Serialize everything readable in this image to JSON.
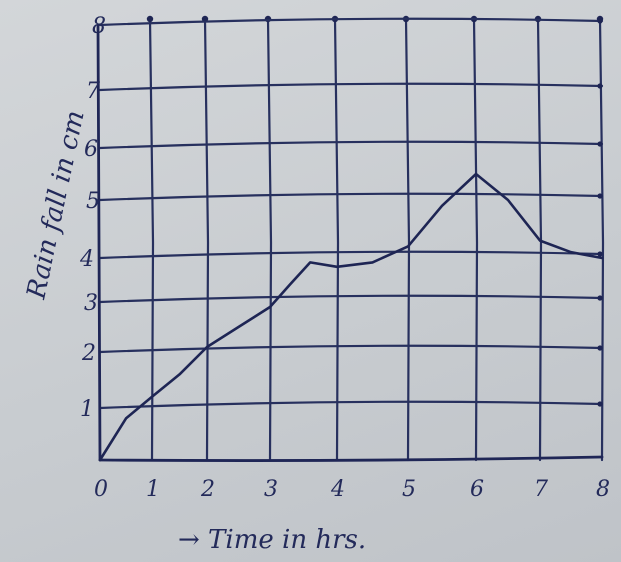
{
  "chart_data": {
    "type": "line",
    "title": "",
    "xlabel": "→ Time in hrs.",
    "ylabel": "Rain fall in cm",
    "xlim": [
      0,
      8
    ],
    "ylim": [
      0,
      8
    ],
    "grid": true,
    "x_ticks": [
      "0",
      "1",
      "2",
      "3",
      "4",
      "5",
      "6",
      "7",
      "8"
    ],
    "y_ticks": [
      "1",
      "2",
      "3",
      "4",
      "5",
      "6",
      "7",
      "8"
    ],
    "series": [
      {
        "x": [
          0,
          0.5,
          1,
          1.5,
          2,
          2.5,
          3,
          3.3,
          3.6,
          4,
          4.5,
          5,
          5.5,
          6,
          6.5,
          7,
          7.5,
          8
        ],
        "y": [
          0,
          0.8,
          1.2,
          1.6,
          2.1,
          2.5,
          2.9,
          3.4,
          3.9,
          3.8,
          3.9,
          4.2,
          4.9,
          5.5,
          5.0,
          4.3,
          4.1,
          4.0
        ]
      }
    ]
  }
}
